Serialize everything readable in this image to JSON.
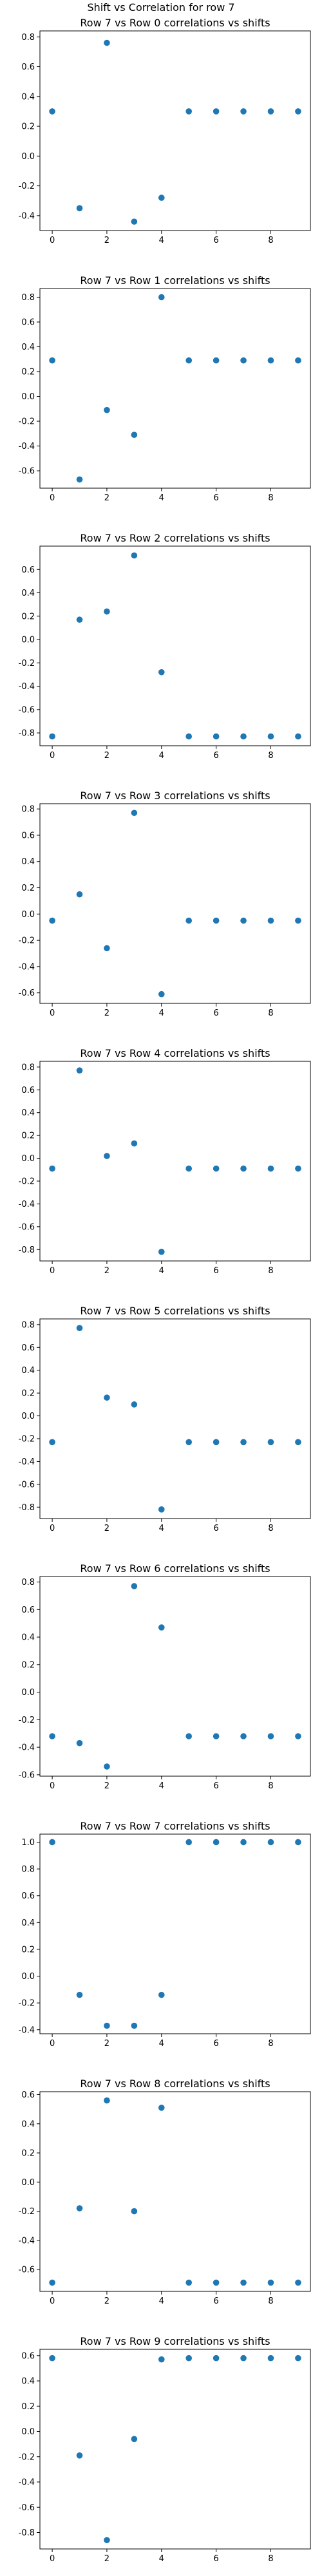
{
  "suptitle": "Shift vs Correlation for row 7",
  "colors": {
    "marker": "#1f77b4",
    "axis": "#000000"
  },
  "chart_data": [
    {
      "type": "scatter",
      "title": "Row 7 vs Row 0 correlations vs shifts",
      "x": [
        0,
        1,
        2,
        3,
        4,
        5,
        6,
        7,
        8,
        9
      ],
      "y": [
        0.3,
        -0.35,
        0.76,
        -0.44,
        -0.28,
        0.3,
        0.3,
        0.3,
        0.3,
        0.3
      ],
      "xlim": [
        -0.45,
        9.45
      ],
      "ylim": [
        -0.5,
        0.84
      ],
      "xticks": [
        0,
        2,
        4,
        6,
        8
      ],
      "yticks": [
        -0.4,
        -0.2,
        0.0,
        0.2,
        0.4,
        0.6,
        0.8
      ],
      "yticklabels": [
        "-0.4",
        "-0.2",
        "0.0",
        "0.2",
        "0.4",
        "0.6",
        "0.8"
      ]
    },
    {
      "type": "scatter",
      "title": "Row 7 vs Row 1 correlations vs shifts",
      "x": [
        0,
        1,
        2,
        3,
        4,
        5,
        6,
        7,
        8,
        9
      ],
      "y": [
        0.29,
        -0.67,
        -0.11,
        -0.31,
        0.8,
        0.29,
        0.29,
        0.29,
        0.29,
        0.29
      ],
      "xlim": [
        -0.45,
        9.45
      ],
      "ylim": [
        -0.74,
        0.87
      ],
      "xticks": [
        0,
        2,
        4,
        6,
        8
      ],
      "yticks": [
        -0.6,
        -0.4,
        -0.2,
        0.0,
        0.2,
        0.4,
        0.6,
        0.8
      ],
      "yticklabels": [
        "-0.6",
        "-0.4",
        "-0.2",
        "0.0",
        "0.2",
        "0.4",
        "0.6",
        "0.8"
      ]
    },
    {
      "type": "scatter",
      "title": "Row 7 vs Row 2 correlations vs shifts",
      "x": [
        0,
        1,
        2,
        3,
        4,
        5,
        6,
        7,
        8,
        9
      ],
      "y": [
        -0.83,
        0.17,
        0.24,
        0.72,
        -0.28,
        -0.83,
        -0.83,
        -0.83,
        -0.83,
        -0.83
      ],
      "xlim": [
        -0.45,
        9.45
      ],
      "ylim": [
        -0.91,
        0.8
      ],
      "xticks": [
        0,
        2,
        4,
        6,
        8
      ],
      "yticks": [
        -0.8,
        -0.6,
        -0.4,
        -0.2,
        0.0,
        0.2,
        0.4,
        0.6
      ],
      "yticklabels": [
        "-0.8",
        "-0.6",
        "-0.4",
        "-0.2",
        "0.0",
        "0.2",
        "0.4",
        "0.6"
      ]
    },
    {
      "type": "scatter",
      "title": "Row 7 vs Row 3 correlations vs shifts",
      "x": [
        0,
        1,
        2,
        3,
        4,
        5,
        6,
        7,
        8,
        9
      ],
      "y": [
        -0.05,
        0.15,
        -0.26,
        0.77,
        -0.61,
        -0.05,
        -0.05,
        -0.05,
        -0.05,
        -0.05
      ],
      "xlim": [
        -0.45,
        9.45
      ],
      "ylim": [
        -0.68,
        0.84
      ],
      "xticks": [
        0,
        2,
        4,
        6,
        8
      ],
      "yticks": [
        -0.6,
        -0.4,
        -0.2,
        0.0,
        0.2,
        0.4,
        0.6,
        0.8
      ],
      "yticklabels": [
        "-0.6",
        "-0.4",
        "-0.2",
        "0.0",
        "0.2",
        "0.4",
        "0.6",
        "0.8"
      ]
    },
    {
      "type": "scatter",
      "title": "Row 7 vs Row 4 correlations vs shifts",
      "x": [
        0,
        1,
        2,
        3,
        4,
        5,
        6,
        7,
        8,
        9
      ],
      "y": [
        -0.09,
        0.77,
        0.02,
        0.13,
        -0.82,
        -0.09,
        -0.09,
        -0.09,
        -0.09,
        -0.09
      ],
      "xlim": [
        -0.45,
        9.45
      ],
      "ylim": [
        -0.9,
        0.85
      ],
      "xticks": [
        0,
        2,
        4,
        6,
        8
      ],
      "yticks": [
        -0.8,
        -0.6,
        -0.4,
        -0.2,
        0.0,
        0.2,
        0.4,
        0.6,
        0.8
      ],
      "yticklabels": [
        "-0.8",
        "-0.6",
        "-0.4",
        "-0.2",
        "0.0",
        "0.2",
        "0.4",
        "0.6",
        "0.8"
      ]
    },
    {
      "type": "scatter",
      "title": "Row 7 vs Row 5 correlations vs shifts",
      "x": [
        0,
        1,
        2,
        3,
        4,
        5,
        6,
        7,
        8,
        9
      ],
      "y": [
        -0.23,
        0.77,
        0.16,
        0.1,
        -0.82,
        -0.23,
        -0.23,
        -0.23,
        -0.23,
        -0.23
      ],
      "xlim": [
        -0.45,
        9.45
      ],
      "ylim": [
        -0.9,
        0.85
      ],
      "xticks": [
        0,
        2,
        4,
        6,
        8
      ],
      "yticks": [
        -0.8,
        -0.6,
        -0.4,
        -0.2,
        0.0,
        0.2,
        0.4,
        0.6,
        0.8
      ],
      "yticklabels": [
        "-0.8",
        "-0.6",
        "-0.4",
        "-0.2",
        "0.0",
        "0.2",
        "0.4",
        "0.6",
        "0.8"
      ]
    },
    {
      "type": "scatter",
      "title": "Row 7 vs Row 6 correlations vs shifts",
      "x": [
        0,
        1,
        2,
        3,
        4,
        5,
        6,
        7,
        8,
        9
      ],
      "y": [
        -0.32,
        -0.37,
        -0.54,
        0.77,
        0.47,
        -0.32,
        -0.32,
        -0.32,
        -0.32,
        -0.32
      ],
      "xlim": [
        -0.45,
        9.45
      ],
      "ylim": [
        -0.61,
        0.84
      ],
      "xticks": [
        0,
        2,
        4,
        6,
        8
      ],
      "yticks": [
        -0.6,
        -0.4,
        -0.2,
        0.0,
        0.2,
        0.4,
        0.6,
        0.8
      ],
      "yticklabels": [
        "-0.6",
        "-0.4",
        "-0.2",
        "0.0",
        "0.2",
        "0.4",
        "0.6",
        "0.8"
      ]
    },
    {
      "type": "scatter",
      "title": "Row 7 vs Row 7 correlations vs shifts",
      "x": [
        0,
        1,
        2,
        3,
        4,
        5,
        6,
        7,
        8,
        9
      ],
      "y": [
        1.0,
        -0.14,
        -0.37,
        -0.37,
        -0.14,
        1.0,
        1.0,
        1.0,
        1.0,
        1.0
      ],
      "xlim": [
        -0.45,
        9.45
      ],
      "ylim": [
        -0.43,
        1.06
      ],
      "xticks": [
        0,
        2,
        4,
        6,
        8
      ],
      "yticks": [
        -0.4,
        -0.2,
        0.0,
        0.2,
        0.4,
        0.6,
        0.8,
        1.0
      ],
      "yticklabels": [
        "-0.4",
        "-0.2",
        "0.0",
        "0.2",
        "0.4",
        "0.6",
        "0.8",
        "1.0"
      ]
    },
    {
      "type": "scatter",
      "title": "Row 7 vs Row 8 correlations vs shifts",
      "x": [
        0,
        1,
        2,
        3,
        4,
        5,
        6,
        7,
        8,
        9
      ],
      "y": [
        -0.69,
        -0.18,
        0.56,
        -0.2,
        0.51,
        -0.69,
        -0.69,
        -0.69,
        -0.69,
        -0.69
      ],
      "xlim": [
        -0.45,
        9.45
      ],
      "ylim": [
        -0.75,
        0.62
      ],
      "xticks": [
        0,
        2,
        4,
        6,
        8
      ],
      "yticks": [
        -0.6,
        -0.4,
        -0.2,
        0.0,
        0.2,
        0.4,
        0.6
      ],
      "yticklabels": [
        "-0.6",
        "-0.4",
        "-0.2",
        "0.0",
        "0.2",
        "0.4",
        "0.6"
      ]
    },
    {
      "type": "scatter",
      "title": "Row 7 vs Row 9 correlations vs shifts",
      "x": [
        0,
        1,
        2,
        3,
        4,
        5,
        6,
        7,
        8,
        9
      ],
      "y": [
        0.58,
        -0.19,
        -0.86,
        -0.06,
        0.57,
        0.58,
        0.58,
        0.58,
        0.58,
        0.58
      ],
      "xlim": [
        -0.45,
        9.45
      ],
      "ylim": [
        -0.93,
        0.65
      ],
      "xticks": [
        0,
        2,
        4,
        6,
        8
      ],
      "yticks": [
        -0.8,
        -0.6,
        -0.4,
        -0.2,
        0.0,
        0.2,
        0.4,
        0.6
      ],
      "yticklabels": [
        "-0.8",
        "-0.6",
        "-0.4",
        "-0.2",
        "0.0",
        "0.2",
        "0.4",
        "0.6"
      ]
    }
  ]
}
